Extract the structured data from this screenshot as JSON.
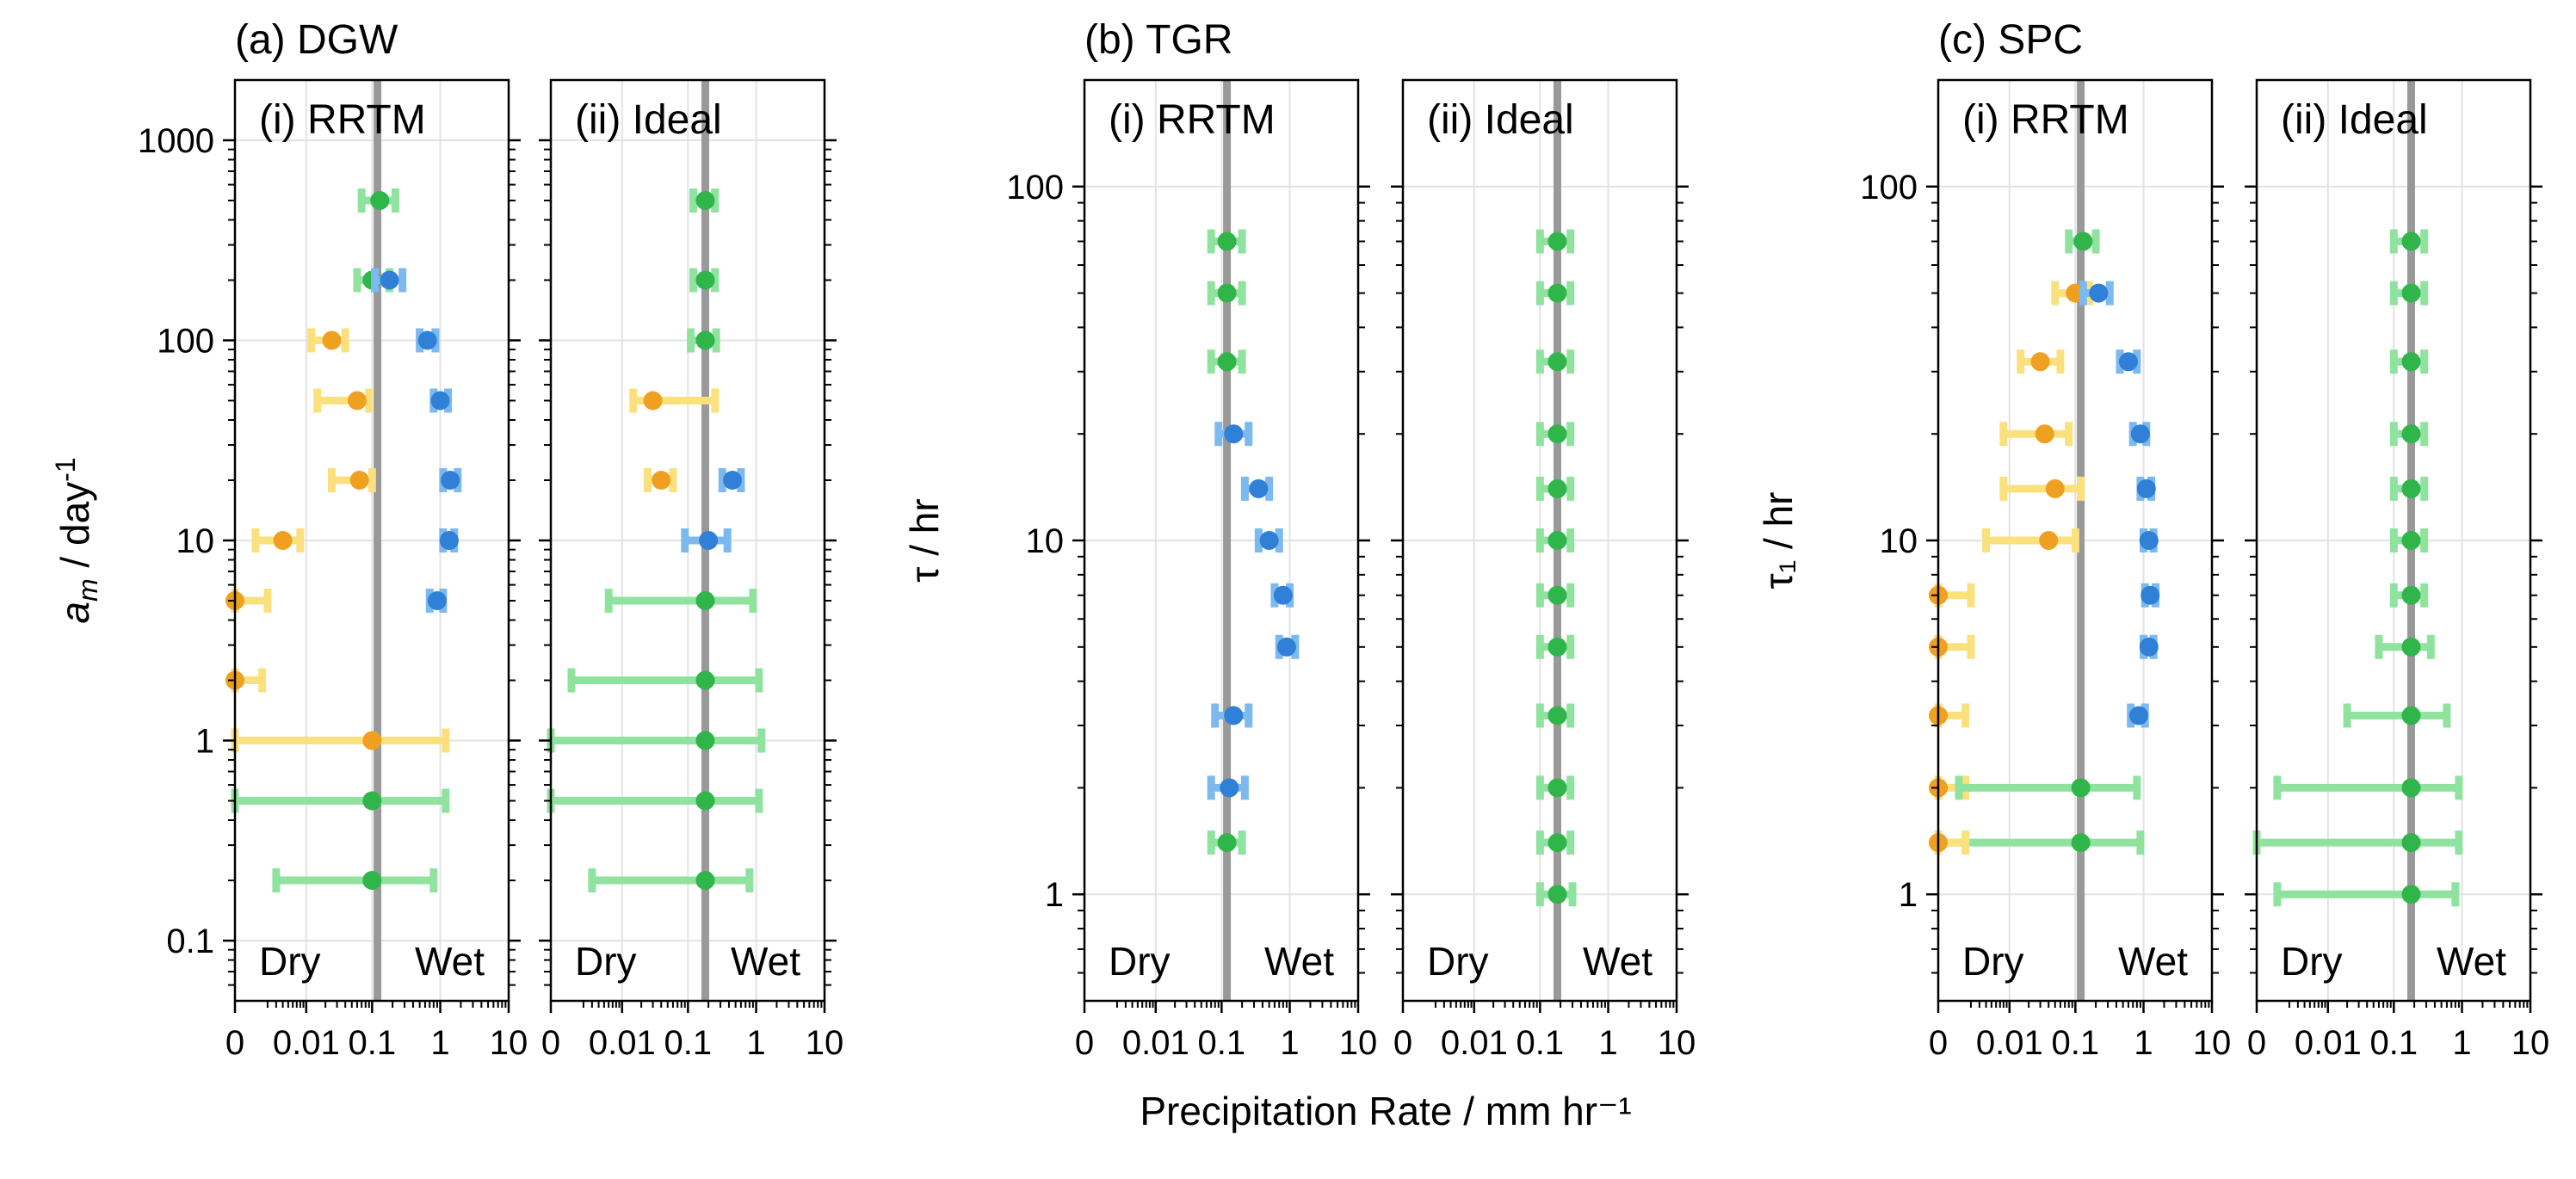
{
  "figure": {
    "xlabel": "Precipitation Rate / mm hr⁻¹",
    "categories_text": {
      "dry": "Dry",
      "wet": "Wet"
    },
    "xticks": [
      "0",
      "0.01",
      "0.1",
      "1",
      "10"
    ]
  },
  "colors": {
    "blue": "#2f80d6",
    "blue_light": "#7cb9ee",
    "orange": "#f0a020",
    "orange_light": "#fbe07e",
    "green": "#2fb54a",
    "green_light": "#8fe39e",
    "median_line": "#999999",
    "grid": "#e3e3e3"
  },
  "chart_data": [
    {
      "type": "scatter",
      "group_title": "(a) DGW",
      "title": "(i) RRTM",
      "ylabel": "a_m / day^-1",
      "yscale": "log",
      "ylim": [
        0.05,
        2000
      ],
      "yticks": [
        "0.1",
        "1",
        "10",
        "100",
        "1000"
      ],
      "xscale": "symlog",
      "xlim": [
        0,
        10
      ],
      "median_x": 0.12,
      "points": [
        {
          "y": 500,
          "x": 0.13,
          "lo": 0.07,
          "hi": 0.22,
          "color": "green"
        },
        {
          "y": 200,
          "x": 0.1,
          "lo": 0.06,
          "hi": 0.18,
          "color": "green"
        },
        {
          "y": 200,
          "x": 0.18,
          "lo": 0.11,
          "hi": 0.28,
          "color": "blue"
        },
        {
          "y": 100,
          "x": 0.025,
          "lo": 0.012,
          "hi": 0.04,
          "color": "orange"
        },
        {
          "y": 100,
          "x": 0.65,
          "lo": 0.5,
          "hi": 0.85,
          "color": "blue"
        },
        {
          "y": 50,
          "x": 0.06,
          "lo": 0.015,
          "hi": 0.09,
          "color": "orange"
        },
        {
          "y": 50,
          "x": 1.0,
          "lo": 0.8,
          "hi": 1.3,
          "color": "blue"
        },
        {
          "y": 20,
          "x": 0.065,
          "lo": 0.025,
          "hi": 0.1,
          "color": "orange"
        },
        {
          "y": 20,
          "x": 1.4,
          "lo": 1.1,
          "hi": 1.8,
          "color": "blue"
        },
        {
          "y": 10,
          "x": 0.004,
          "lo": 0.001,
          "hi": 0.008,
          "color": "orange"
        },
        {
          "y": 10,
          "x": 1.35,
          "lo": 1.1,
          "hi": 1.6,
          "color": "blue"
        },
        {
          "y": 5,
          "x": 0.0,
          "lo": 0.0,
          "hi": 0.002,
          "color": "orange"
        },
        {
          "y": 5,
          "x": 0.9,
          "lo": 0.7,
          "hi": 1.1,
          "color": "blue"
        },
        {
          "y": 2,
          "x": 0.0,
          "lo": 0.0,
          "hi": 0.0015,
          "color": "orange"
        },
        {
          "y": 1,
          "x": 0.1,
          "lo": 0.0,
          "hi": 1.2,
          "color": "orange"
        },
        {
          "y": 0.5,
          "x": 0.1,
          "lo": 0.0,
          "hi": 1.2,
          "color": "green"
        },
        {
          "y": 0.2,
          "x": 0.1,
          "lo": 0.003,
          "hi": 0.8,
          "color": "green"
        }
      ]
    },
    {
      "type": "scatter",
      "title": "(ii) Ideal",
      "yscale": "log",
      "ylim": [
        0.05,
        2000
      ],
      "xscale": "symlog",
      "xlim": [
        0,
        10
      ],
      "median_x": 0.18,
      "points": [
        {
          "y": 500,
          "x": 0.18,
          "lo": 0.12,
          "hi": 0.25,
          "color": "green"
        },
        {
          "y": 200,
          "x": 0.18,
          "lo": 0.12,
          "hi": 0.25,
          "color": "green"
        },
        {
          "y": 100,
          "x": 0.18,
          "lo": 0.11,
          "hi": 0.26,
          "color": "green"
        },
        {
          "y": 50,
          "x": 0.03,
          "lo": 0.015,
          "hi": 0.25,
          "color": "orange"
        },
        {
          "y": 20,
          "x": 0.04,
          "lo": 0.025,
          "hi": 0.06,
          "color": "orange"
        },
        {
          "y": 20,
          "x": 0.45,
          "lo": 0.32,
          "hi": 0.6,
          "color": "blue"
        },
        {
          "y": 10,
          "x": 0.2,
          "lo": 0.09,
          "hi": 0.38,
          "color": "blue"
        },
        {
          "y": 5,
          "x": 0.18,
          "lo": 0.006,
          "hi": 0.9,
          "color": "green"
        },
        {
          "y": 2,
          "x": 0.18,
          "lo": 0.001,
          "hi": 1.1,
          "color": "green"
        },
        {
          "y": 1,
          "x": 0.18,
          "lo": 0.0,
          "hi": 1.2,
          "color": "green"
        },
        {
          "y": 0.5,
          "x": 0.18,
          "lo": 0.0,
          "hi": 1.1,
          "color": "green"
        },
        {
          "y": 0.2,
          "x": 0.18,
          "lo": 0.003,
          "hi": 0.8,
          "color": "green"
        }
      ]
    },
    {
      "type": "scatter",
      "group_title": "(b) TGR",
      "title": "(i) RRTM",
      "ylabel": "τ / hr",
      "yscale": "log",
      "ylim": [
        0.5,
        200
      ],
      "yticks": [
        "1",
        "10",
        "100"
      ],
      "xscale": "symlog",
      "xlim": [
        0,
        10
      ],
      "median_x": 0.12,
      "points": [
        {
          "y": 70,
          "x": 0.12,
          "lo": 0.07,
          "hi": 0.2,
          "color": "green"
        },
        {
          "y": 50,
          "x": 0.12,
          "lo": 0.07,
          "hi": 0.2,
          "color": "green"
        },
        {
          "y": 32,
          "x": 0.12,
          "lo": 0.07,
          "hi": 0.2,
          "color": "green"
        },
        {
          "y": 20,
          "x": 0.15,
          "lo": 0.09,
          "hi": 0.25,
          "color": "blue"
        },
        {
          "y": 14,
          "x": 0.35,
          "lo": 0.22,
          "hi": 0.5,
          "color": "blue"
        },
        {
          "y": 10,
          "x": 0.5,
          "lo": 0.35,
          "hi": 0.7,
          "color": "blue"
        },
        {
          "y": 7,
          "x": 0.8,
          "lo": 0.6,
          "hi": 1.0,
          "color": "blue"
        },
        {
          "y": 5,
          "x": 0.9,
          "lo": 0.7,
          "hi": 1.2,
          "color": "blue"
        },
        {
          "y": 3.2,
          "x": 0.15,
          "lo": 0.08,
          "hi": 0.25,
          "color": "blue"
        },
        {
          "y": 2,
          "x": 0.13,
          "lo": 0.07,
          "hi": 0.22,
          "color": "blue"
        },
        {
          "y": 1.4,
          "x": 0.12,
          "lo": 0.07,
          "hi": 0.2,
          "color": "green"
        }
      ]
    },
    {
      "type": "scatter",
      "title": "(ii) Ideal",
      "yscale": "log",
      "ylim": [
        0.5,
        200
      ],
      "xscale": "symlog",
      "xlim": [
        0,
        10
      ],
      "median_x": 0.18,
      "points": [
        {
          "y": 70,
          "x": 0.18,
          "lo": 0.1,
          "hi": 0.28,
          "color": "green"
        },
        {
          "y": 50,
          "x": 0.18,
          "lo": 0.1,
          "hi": 0.28,
          "color": "green"
        },
        {
          "y": 32,
          "x": 0.18,
          "lo": 0.1,
          "hi": 0.28,
          "color": "green"
        },
        {
          "y": 20,
          "x": 0.18,
          "lo": 0.1,
          "hi": 0.28,
          "color": "green"
        },
        {
          "y": 14,
          "x": 0.18,
          "lo": 0.1,
          "hi": 0.28,
          "color": "green"
        },
        {
          "y": 10,
          "x": 0.18,
          "lo": 0.1,
          "hi": 0.28,
          "color": "green"
        },
        {
          "y": 7,
          "x": 0.18,
          "lo": 0.1,
          "hi": 0.28,
          "color": "green"
        },
        {
          "y": 5,
          "x": 0.18,
          "lo": 0.1,
          "hi": 0.28,
          "color": "green"
        },
        {
          "y": 3.2,
          "x": 0.18,
          "lo": 0.1,
          "hi": 0.28,
          "color": "green"
        },
        {
          "y": 2,
          "x": 0.18,
          "lo": 0.1,
          "hi": 0.28,
          "color": "green"
        },
        {
          "y": 1.4,
          "x": 0.18,
          "lo": 0.1,
          "hi": 0.28,
          "color": "green"
        },
        {
          "y": 1,
          "x": 0.18,
          "lo": 0.1,
          "hi": 0.3,
          "color": "green"
        }
      ]
    },
    {
      "type": "scatter",
      "group_title": "(c) SPC",
      "title": "(i) RRTM",
      "ylabel": "τ₁ / hr",
      "yscale": "log",
      "ylim": [
        0.5,
        200
      ],
      "yticks": [
        "1",
        "10",
        "100"
      ],
      "xscale": "symlog",
      "xlim": [
        0,
        10
      ],
      "median_x": 0.12,
      "points": [
        {
          "y": 70,
          "x": 0.13,
          "lo": 0.08,
          "hi": 0.2,
          "color": "green"
        },
        {
          "y": 50,
          "x": 0.1,
          "lo": 0.05,
          "hi": 0.16,
          "color": "orange"
        },
        {
          "y": 50,
          "x": 0.22,
          "lo": 0.13,
          "hi": 0.32,
          "color": "blue"
        },
        {
          "y": 32,
          "x": 0.03,
          "lo": 0.015,
          "hi": 0.06,
          "color": "orange"
        },
        {
          "y": 32,
          "x": 0.6,
          "lo": 0.45,
          "hi": 0.8,
          "color": "blue"
        },
        {
          "y": 20,
          "x": 0.035,
          "lo": 0.008,
          "hi": 0.08,
          "color": "orange"
        },
        {
          "y": 20,
          "x": 0.9,
          "lo": 0.7,
          "hi": 1.1,
          "color": "blue"
        },
        {
          "y": 14,
          "x": 0.05,
          "lo": 0.008,
          "hi": 0.12,
          "color": "orange"
        },
        {
          "y": 14,
          "x": 1.1,
          "lo": 0.9,
          "hi": 1.3,
          "color": "blue"
        },
        {
          "y": 10,
          "x": 0.04,
          "lo": 0.004,
          "hi": 0.1,
          "color": "orange"
        },
        {
          "y": 10,
          "x": 1.2,
          "lo": 1.0,
          "hi": 1.4,
          "color": "blue"
        },
        {
          "y": 7,
          "x": 0.0,
          "lo": 0.0,
          "hi": 0.002,
          "color": "orange"
        },
        {
          "y": 7,
          "x": 1.25,
          "lo": 1.05,
          "hi": 1.5,
          "color": "blue"
        },
        {
          "y": 5,
          "x": 0.0,
          "lo": 0.0,
          "hi": 0.002,
          "color": "orange"
        },
        {
          "y": 5,
          "x": 1.2,
          "lo": 1.0,
          "hi": 1.4,
          "color": "blue"
        },
        {
          "y": 3.2,
          "x": 0.0,
          "lo": 0.0,
          "hi": 0.0015,
          "color": "orange"
        },
        {
          "y": 3.2,
          "x": 0.85,
          "lo": 0.65,
          "hi": 1.05,
          "color": "blue"
        },
        {
          "y": 2,
          "x": 0.0,
          "lo": 0.0,
          "hi": 0.0015,
          "color": "orange"
        },
        {
          "y": 2,
          "x": 0.12,
          "lo": 0.001,
          "hi": 0.8,
          "color": "green"
        },
        {
          "y": 1.4,
          "x": 0.12,
          "lo": 0.0,
          "hi": 0.9,
          "color": "green"
        },
        {
          "y": 1.4,
          "x": 0.0,
          "lo": 0.0,
          "hi": 0.0015,
          "color": "orange"
        }
      ]
    },
    {
      "type": "scatter",
      "title": "(ii) Ideal",
      "yscale": "log",
      "ylim": [
        0.5,
        200
      ],
      "xscale": "symlog",
      "xlim": [
        0,
        10
      ],
      "median_x": 0.18,
      "points": [
        {
          "y": 70,
          "x": 0.18,
          "lo": 0.1,
          "hi": 0.28,
          "color": "green"
        },
        {
          "y": 50,
          "x": 0.18,
          "lo": 0.1,
          "hi": 0.28,
          "color": "green"
        },
        {
          "y": 32,
          "x": 0.18,
          "lo": 0.1,
          "hi": 0.28,
          "color": "green"
        },
        {
          "y": 20,
          "x": 0.18,
          "lo": 0.1,
          "hi": 0.28,
          "color": "green"
        },
        {
          "y": 14,
          "x": 0.18,
          "lo": 0.1,
          "hi": 0.28,
          "color": "green"
        },
        {
          "y": 10,
          "x": 0.18,
          "lo": 0.1,
          "hi": 0.28,
          "color": "green"
        },
        {
          "y": 7,
          "x": 0.18,
          "lo": 0.1,
          "hi": 0.28,
          "color": "green"
        },
        {
          "y": 5,
          "x": 0.18,
          "lo": 0.06,
          "hi": 0.35,
          "color": "green"
        },
        {
          "y": 3.2,
          "x": 0.18,
          "lo": 0.02,
          "hi": 0.6,
          "color": "green"
        },
        {
          "y": 2,
          "x": 0.18,
          "lo": 0.001,
          "hi": 0.9,
          "color": "green"
        },
        {
          "y": 1.4,
          "x": 0.18,
          "lo": 0.0,
          "hi": 0.9,
          "color": "green"
        },
        {
          "y": 1,
          "x": 0.18,
          "lo": 0.001,
          "hi": 0.8,
          "color": "green"
        }
      ]
    }
  ]
}
